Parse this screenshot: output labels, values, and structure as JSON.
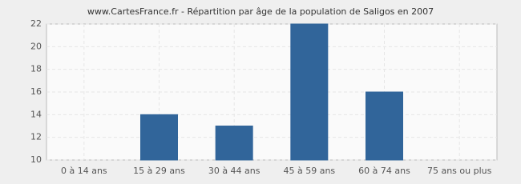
{
  "chart_data": {
    "type": "bar",
    "title": "www.CartesFrance.fr - Répartition par âge de la population de Saligos en 2007",
    "categories": [
      "0 à 14 ans",
      "15 à 29 ans",
      "30 à 44 ans",
      "45 à 59 ans",
      "60 à 74 ans",
      "75 ans ou plus"
    ],
    "values": [
      10,
      14,
      13,
      22,
      16,
      10
    ],
    "color": "#31659a",
    "ylim": [
      10,
      22
    ],
    "yticks": [
      10,
      12,
      14,
      16,
      18,
      20,
      22
    ],
    "grid": true
  }
}
